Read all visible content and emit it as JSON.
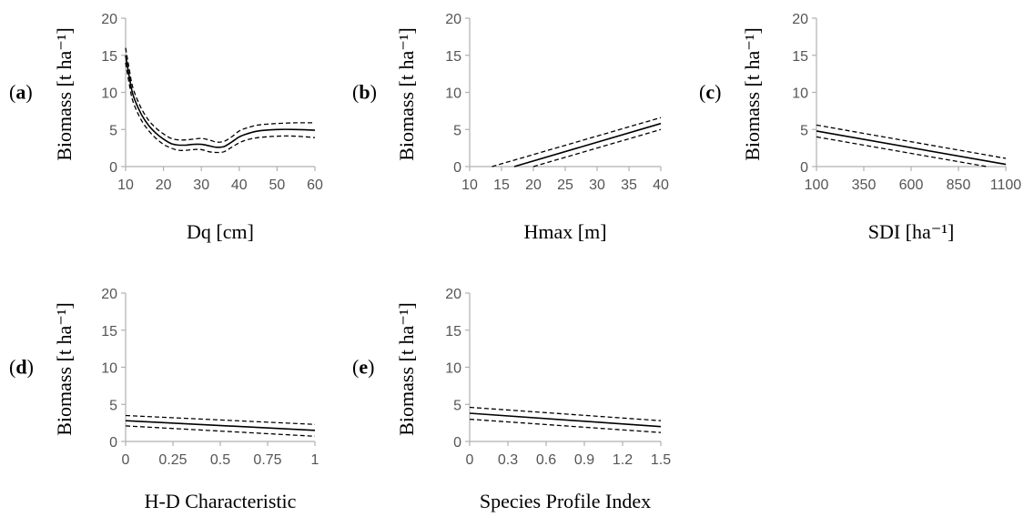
{
  "chart_data": [
    {
      "id": "a",
      "type": "line",
      "panel_label": "a",
      "xlabel": "Dq [cm]",
      "ylabel": "Biomass [t ha⁻¹]",
      "xlim": [
        10,
        60
      ],
      "ylim": [
        0,
        20
      ],
      "xticks": [
        "10",
        "20",
        "30",
        "40",
        "50",
        "60"
      ],
      "yticks": [
        "0",
        "5",
        "10",
        "15",
        "20"
      ],
      "series": [
        {
          "style": "solid",
          "x": [
            10,
            11,
            12,
            14,
            16,
            18,
            20,
            22,
            24,
            26,
            28,
            30,
            32,
            34,
            36,
            38,
            40,
            42,
            45,
            50,
            55,
            60
          ],
          "y": [
            15.0,
            12.0,
            9.6,
            7.2,
            5.6,
            4.5,
            3.7,
            3.1,
            2.9,
            2.9,
            3.0,
            3.0,
            2.8,
            2.6,
            2.7,
            3.3,
            4.0,
            4.4,
            4.8,
            5.0,
            5.0,
            4.9
          ]
        },
        {
          "style": "dashed",
          "x": [
            10,
            11,
            12,
            14,
            16,
            18,
            20,
            22,
            24,
            26,
            28,
            30,
            32,
            34,
            36,
            38,
            40,
            42,
            45,
            50,
            55,
            60
          ],
          "y": [
            16.0,
            13.0,
            10.5,
            8.0,
            6.3,
            5.2,
            4.4,
            3.8,
            3.6,
            3.6,
            3.7,
            3.8,
            3.6,
            3.3,
            3.4,
            4.0,
            4.8,
            5.2,
            5.6,
            5.8,
            5.9,
            5.9
          ]
        },
        {
          "style": "dashed",
          "x": [
            10,
            11,
            12,
            14,
            16,
            18,
            20,
            22,
            24,
            26,
            28,
            30,
            32,
            34,
            36,
            38,
            40,
            42,
            45,
            50,
            55,
            60
          ],
          "y": [
            14.0,
            11.0,
            8.7,
            6.4,
            4.9,
            3.8,
            3.0,
            2.5,
            2.2,
            2.2,
            2.3,
            2.3,
            2.0,
            1.9,
            2.0,
            2.6,
            3.2,
            3.6,
            3.9,
            4.1,
            4.1,
            3.9
          ]
        }
      ]
    },
    {
      "id": "b",
      "type": "line",
      "panel_label": "b",
      "xlabel": "Hmax [m]",
      "ylabel": "Biomass [t ha⁻¹]",
      "xlim": [
        10,
        40
      ],
      "ylim": [
        0,
        20
      ],
      "xticks": [
        "10",
        "15",
        "20",
        "25",
        "30",
        "35",
        "40"
      ],
      "yticks": [
        "0",
        "5",
        "10",
        "15",
        "20"
      ],
      "series": [
        {
          "style": "solid",
          "x": [
            17,
            40
          ],
          "y": [
            0,
            5.8
          ]
        },
        {
          "style": "dashed",
          "x": [
            13.5,
            40
          ],
          "y": [
            0,
            6.6
          ]
        },
        {
          "style": "dashed",
          "x": [
            20,
            40
          ],
          "y": [
            0,
            5.0
          ]
        }
      ]
    },
    {
      "id": "c",
      "type": "line",
      "panel_label": "c",
      "xlabel": "SDI [ha⁻¹]",
      "ylabel": "Biomass [t ha⁻¹]",
      "xlim": [
        100,
        1100
      ],
      "ylim": [
        0,
        20
      ],
      "xticks": [
        "100",
        "350",
        "600",
        "850",
        "1100"
      ],
      "yticks": [
        "0",
        "5",
        "10",
        "15",
        "20"
      ],
      "series": [
        {
          "style": "solid",
          "x": [
            100,
            1100
          ],
          "y": [
            4.8,
            0.3
          ]
        },
        {
          "style": "dashed",
          "x": [
            100,
            1100
          ],
          "y": [
            5.6,
            1.1
          ]
        },
        {
          "style": "dashed",
          "x": [
            100,
            1000
          ],
          "y": [
            4.0,
            0.0
          ]
        }
      ]
    },
    {
      "id": "d",
      "type": "line",
      "panel_label": "d",
      "xlabel": "H-D Characteristic",
      "ylabel": "Biomass [t ha⁻¹]",
      "xlim": [
        0,
        1
      ],
      "ylim": [
        0,
        20
      ],
      "xticks": [
        "0",
        "0.25",
        "0.5",
        "0.75",
        "1"
      ],
      "yticks": [
        "0",
        "5",
        "10",
        "15",
        "20"
      ],
      "series": [
        {
          "style": "solid",
          "x": [
            0,
            1
          ],
          "y": [
            2.8,
            1.5
          ]
        },
        {
          "style": "dashed",
          "x": [
            0,
            1
          ],
          "y": [
            3.5,
            2.3
          ]
        },
        {
          "style": "dashed",
          "x": [
            0,
            1
          ],
          "y": [
            2.1,
            0.7
          ]
        }
      ]
    },
    {
      "id": "e",
      "type": "line",
      "panel_label": "e",
      "xlabel": "Species Profile Index",
      "ylabel": "Biomass [t ha⁻¹]",
      "xlim": [
        0,
        1.5
      ],
      "ylim": [
        0,
        20
      ],
      "xticks": [
        "0",
        "0.3",
        "0.6",
        "0.9",
        "1.2",
        "1.5"
      ],
      "yticks": [
        "0",
        "5",
        "10",
        "15",
        "20"
      ],
      "series": [
        {
          "style": "solid",
          "x": [
            0,
            1.5
          ],
          "y": [
            3.8,
            2.0
          ]
        },
        {
          "style": "dashed",
          "x": [
            0,
            1.5
          ],
          "y": [
            4.6,
            2.8
          ]
        },
        {
          "style": "dashed",
          "x": [
            0,
            1.5
          ],
          "y": [
            3.0,
            1.2
          ]
        }
      ]
    }
  ]
}
